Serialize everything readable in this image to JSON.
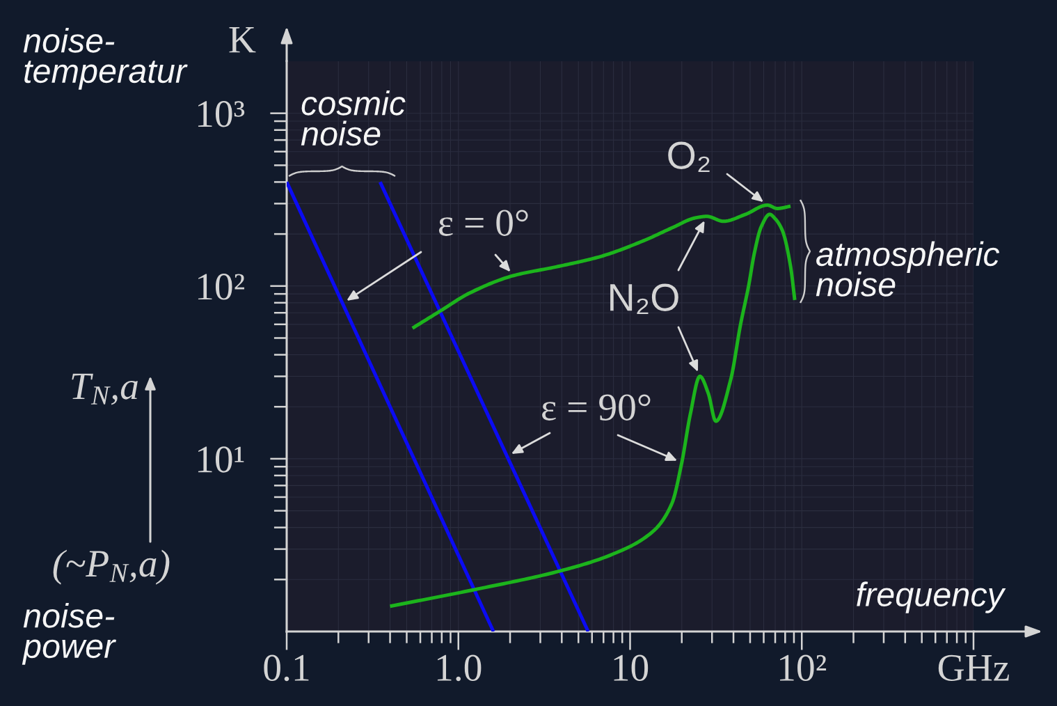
{
  "chart_data": {
    "type": "line",
    "xlabel": "frequency",
    "ylabel": "T$_{N}$,a",
    "log": "xy",
    "xlim": [
      0.1,
      1000
    ],
    "ylim": [
      1,
      2000
    ],
    "xticks": [
      0.1,
      {
        "value": 1,
        "label": "1.0"
      },
      10,
      {
        "value": 100,
        "label": "10²"
      },
      {
        "value": 1000,
        "label": "GHz"
      }
    ],
    "yticks": [
      {
        "value": 10,
        "label": "10¹"
      },
      {
        "value": 100,
        "label": "10²"
      },
      {
        "value": 1000,
        "label": "10³"
      }
    ],
    "grid": true,
    "series": [
      {
        "color": "#0b0bf2",
        "x": [
          0.1,
          1.6
        ],
        "values": [
          400,
          1
        ]
      },
      {
        "color": "#0b0bf2",
        "x": [
          0.35,
          5.7
        ],
        "values": [
          400,
          1
        ]
      },
      {
        "color": "#1cb41c",
        "x": [
          0.54,
          0.79,
          1.16,
          2.1,
          3.7,
          6.7,
          12,
          17.7,
          24,
          28,
          35,
          47,
          63,
          72,
          86
        ],
        "values": [
          57,
          72,
          91,
          115,
          129,
          148,
          183,
          218,
          248,
          253,
          237,
          260,
          294,
          281,
          290
        ]
      },
      {
        "color": "#1cb41c",
        "x": [
          0.4,
          1.25,
          3.9,
          7.9,
          13.6,
          17.5,
          20,
          22.4,
          25.5,
          28.5,
          31.6,
          38.5,
          44,
          49,
          53,
          58,
          65,
          70,
          77,
          86,
          91
        ],
        "values": [
          1.4,
          1.75,
          2.24,
          2.8,
          3.8,
          5.5,
          9.5,
          18,
          30,
          24,
          16.5,
          28.6,
          60,
          100,
          156,
          220,
          260,
          245,
          210,
          130,
          83
        ]
      }
    ],
    "annotations": [
      "noise-\ntemperatur",
      "K",
      "(~P$_{N}$,a)",
      "noise-\npower",
      "cosmic\nnoise",
      "ε = 0°",
      "ε = 90°",
      "O₂",
      "N₂O",
      "atmospheric\nnoise"
    ]
  }
}
